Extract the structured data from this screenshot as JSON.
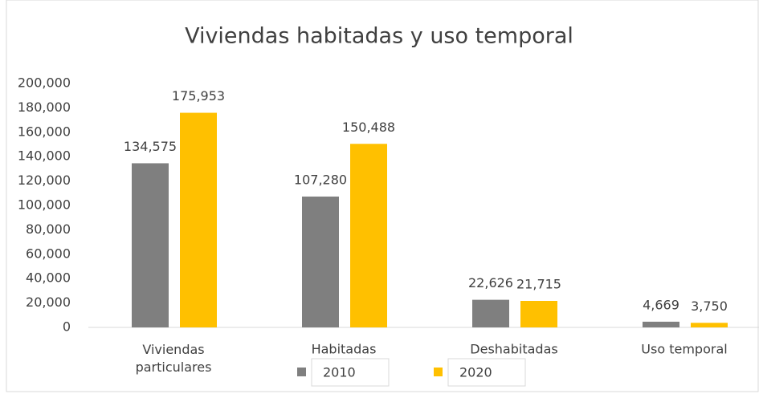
{
  "chart_data": {
    "type": "bar",
    "title": "Viviendas habitadas y uso temporal",
    "categories": [
      "Viviendas particulares",
      "Habitadas",
      "Deshabitadas",
      "Uso temporal"
    ],
    "series": [
      {
        "name": "2010",
        "color": "#7f7f7f",
        "values": [
          134575,
          107280,
          22626,
          4669
        ],
        "value_labels": [
          "134,575",
          "107,280",
          "22,626",
          "4,669"
        ]
      },
      {
        "name": "2020",
        "color": "#ffc000",
        "values": [
          175953,
          150488,
          21715,
          3750
        ],
        "value_labels": [
          "175,953",
          "150,488",
          "21,715",
          "3,750"
        ]
      }
    ],
    "ylim": [
      0,
      200000
    ],
    "yticks": [
      0,
      {
        "value": 20000,
        "label": "20,000"
      },
      {
        "value": 40000,
        "label": "40,000"
      },
      {
        "value": 60000,
        "label": "60,000"
      },
      {
        "value": 80000,
        "label": "80,000"
      },
      {
        "value": 100000,
        "label": "100,000"
      },
      {
        "value": 120000,
        "label": "120,000"
      },
      {
        "value": 140000,
        "label": "140,000"
      },
      {
        "value": 160000,
        "label": "160,000"
      },
      {
        "value": 180000,
        "label": "180,000"
      },
      {
        "value": 200000,
        "label": "200,000"
      }
    ],
    "grid": false,
    "legend": "bottom"
  }
}
